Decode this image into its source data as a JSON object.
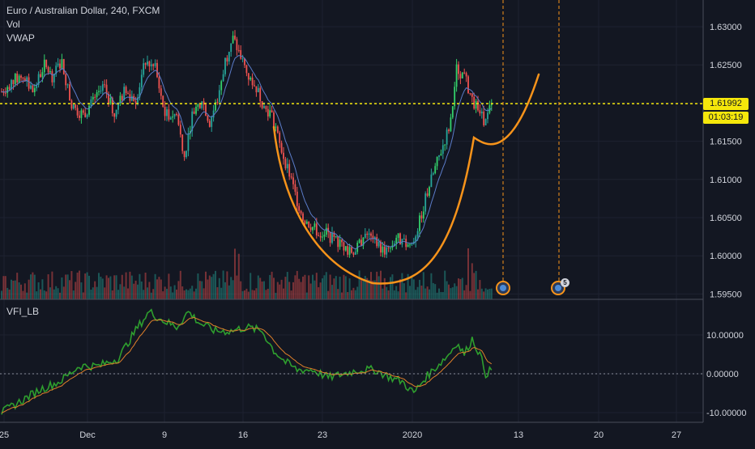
{
  "header": {
    "symbol_label": "Euro / Australian Dollar, 240, FXCM",
    "volume_label": "Vol",
    "vwap_label": "VWAP",
    "indicator_label": "VFI_LB"
  },
  "colors": {
    "background": "#131722",
    "up_candle": "#26a69a",
    "up_candle_bright": "#33d16b",
    "down_candle": "#ef5350",
    "vwap_line": "#5b7cc9",
    "annotation": "#f7931a",
    "price_line": "#f5e70b",
    "vfi_line": "#2e9e2e",
    "vfi_signal": "#e0802a",
    "grid": "#1e2230",
    "axis_text": "#d1d4dc"
  },
  "price_axis": {
    "ticks": [
      "1.63000",
      "1.62500",
      "1.62000",
      "1.61500",
      "1.61000",
      "1.60500",
      "1.60000",
      "1.59500"
    ],
    "current_price": "1.61992",
    "countdown": "01:03:19"
  },
  "vfi_axis": {
    "ticks": [
      "10.00000",
      "0.00000",
      "-10.00000"
    ]
  },
  "time_axis": {
    "ticks": [
      "25",
      "Dec",
      "9",
      "16",
      "23",
      "2020",
      "13",
      "20",
      "27"
    ]
  },
  "events": {
    "badge_count": "5"
  },
  "chart_data": {
    "type": "candlestick",
    "instrument": "Euro / Australian Dollar",
    "timeframe": "240",
    "source": "FXCM",
    "price_ylim": [
      1.5945,
      1.6315
    ],
    "vfi_ylim": [
      -12,
      17
    ],
    "current_price": 1.61992,
    "anchor_closes": [
      [
        0,
        1.6215
      ],
      [
        6,
        1.623
      ],
      [
        11,
        1.6235
      ],
      [
        16,
        1.6215
      ],
      [
        22,
        1.625
      ],
      [
        26,
        1.6235
      ],
      [
        31,
        1.6255
      ],
      [
        36,
        1.6195
      ],
      [
        42,
        1.6185
      ],
      [
        48,
        1.6205
      ],
      [
        53,
        1.622
      ],
      [
        58,
        1.6185
      ],
      [
        63,
        1.6215
      ],
      [
        69,
        1.6205
      ],
      [
        74,
        1.6255
      ],
      [
        79,
        1.6245
      ],
      [
        84,
        1.6185
      ],
      [
        90,
        1.6185
      ],
      [
        94,
        1.613
      ],
      [
        98,
        1.6185
      ],
      [
        103,
        1.6205
      ],
      [
        107,
        1.6175
      ],
      [
        111,
        1.6205
      ],
      [
        115,
        1.6255
      ],
      [
        119,
        1.6285
      ],
      [
        123,
        1.626
      ],
      [
        127,
        1.6235
      ],
      [
        131,
        1.622
      ],
      [
        135,
        1.6195
      ],
      [
        139,
        1.6185
      ],
      [
        143,
        1.6145
      ],
      [
        147,
        1.6115
      ],
      [
        151,
        1.608
      ],
      [
        155,
        1.605
      ],
      [
        159,
        1.604
      ],
      [
        163,
        1.603
      ],
      [
        167,
        1.603
      ],
      [
        171,
        1.602
      ],
      [
        175,
        1.6015
      ],
      [
        179,
        1.6005
      ],
      [
        183,
        1.601
      ],
      [
        187,
        1.603
      ],
      [
        191,
        1.602
      ],
      [
        195,
        1.601
      ],
      [
        199,
        1.6005
      ],
      [
        203,
        1.6025
      ],
      [
        207,
        1.6015
      ],
      [
        211,
        1.6015
      ],
      [
        215,
        1.6045
      ],
      [
        219,
        1.6085
      ],
      [
        223,
        1.6115
      ],
      [
        227,
        1.6145
      ],
      [
        231,
        1.6175
      ],
      [
        234,
        1.6245
      ],
      [
        238,
        1.6235
      ],
      [
        242,
        1.6205
      ],
      [
        246,
        1.6185
      ],
      [
        249,
        1.6175
      ],
      [
        252,
        1.6199
      ]
    ],
    "vfi_anchors": [
      [
        0,
        -10
      ],
      [
        10,
        -7
      ],
      [
        20,
        -4
      ],
      [
        30,
        -2
      ],
      [
        40,
        2
      ],
      [
        50,
        2
      ],
      [
        60,
        4
      ],
      [
        70,
        12
      ],
      [
        76,
        16
      ],
      [
        82,
        14
      ],
      [
        90,
        12
      ],
      [
        96,
        16
      ],
      [
        102,
        13
      ],
      [
        110,
        11
      ],
      [
        118,
        11
      ],
      [
        126,
        12
      ],
      [
        134,
        11
      ],
      [
        140,
        6
      ],
      [
        146,
        3
      ],
      [
        152,
        1
      ],
      [
        160,
        1
      ],
      [
        168,
        -1
      ],
      [
        176,
        0
      ],
      [
        184,
        1
      ],
      [
        192,
        1
      ],
      [
        200,
        -1
      ],
      [
        206,
        -2
      ],
      [
        212,
        -5
      ],
      [
        218,
        -1
      ],
      [
        224,
        2
      ],
      [
        230,
        5
      ],
      [
        234,
        8
      ],
      [
        238,
        5
      ],
      [
        242,
        9
      ],
      [
        246,
        5
      ],
      [
        249,
        0
      ],
      [
        252,
        1
      ]
    ]
  }
}
